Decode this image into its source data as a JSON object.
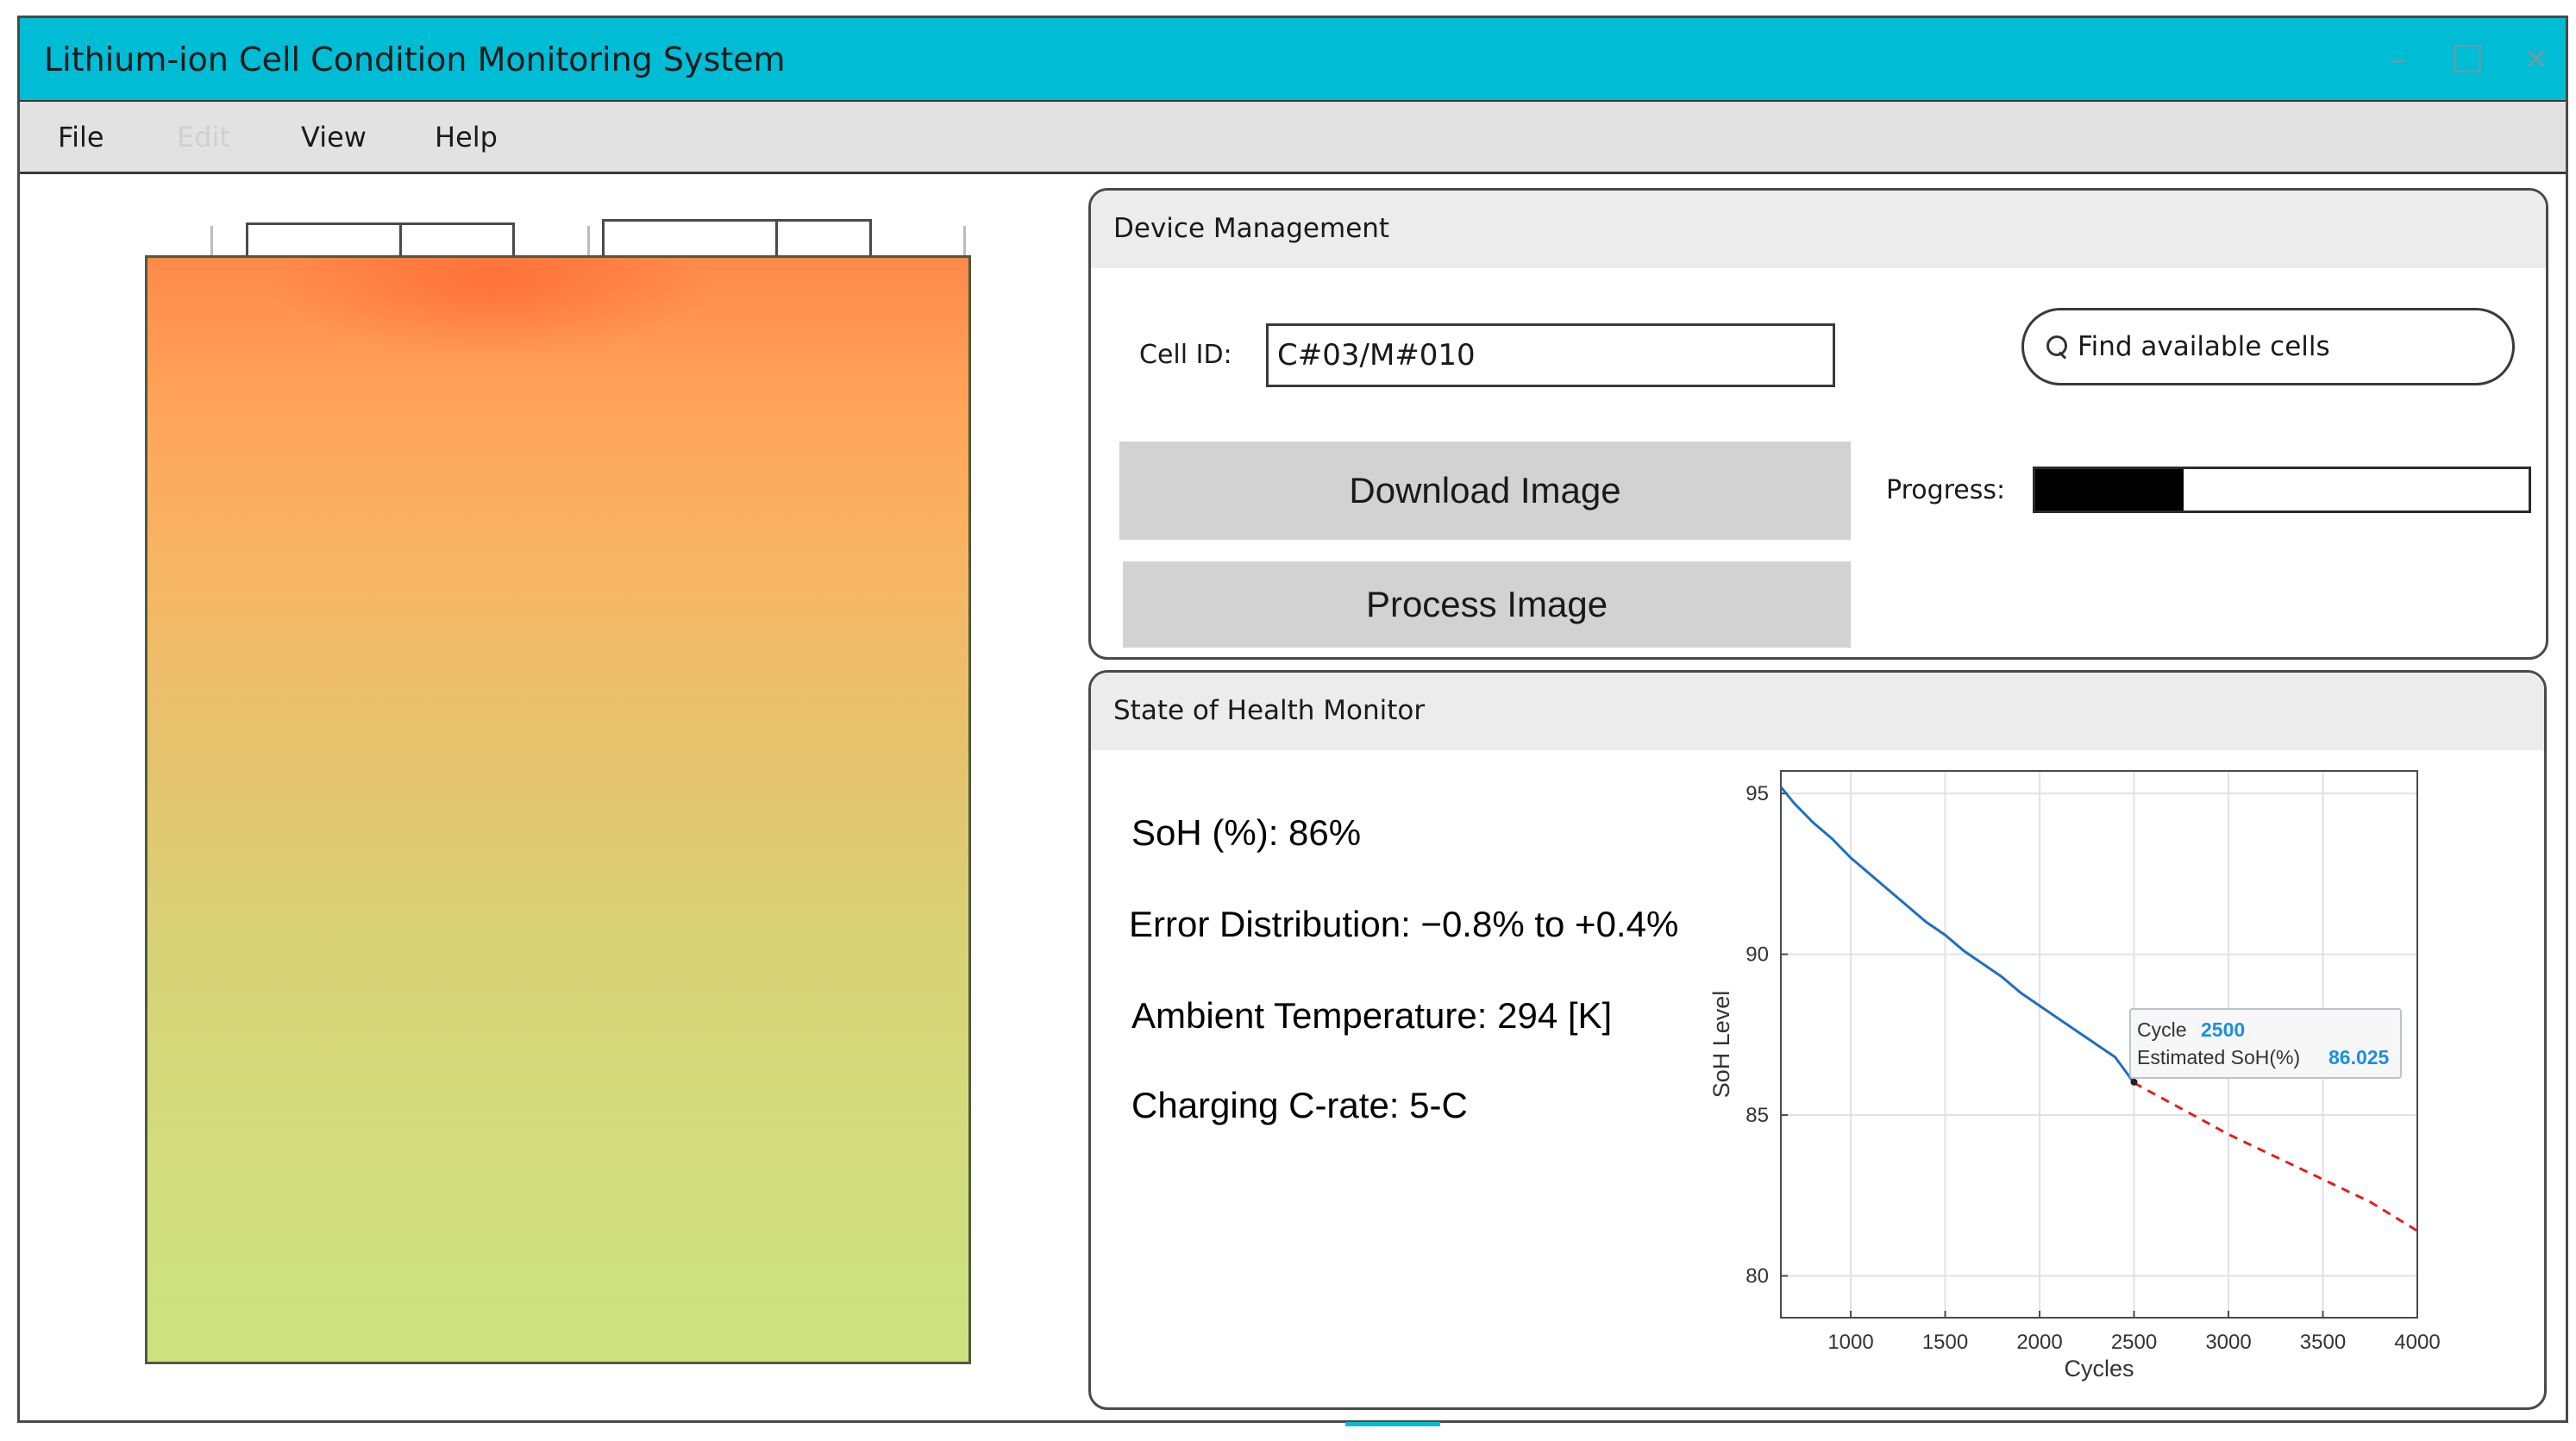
{
  "window": {
    "title": "Lithium-ion Cell Condition Monitoring System",
    "minimize_glyph": "–",
    "maximize_glyph": "☐",
    "close_glyph": "✕",
    "accent_color": "#00bcd4"
  },
  "menu": {
    "file": "File",
    "edit": "Edit",
    "view": "View",
    "help": "Help"
  },
  "device_management": {
    "title": "Device Management",
    "cell_id_label": "Cell ID:",
    "cell_id_value": "C#03/M#010",
    "find_button": "Find available cells",
    "download_button": "Download Image",
    "process_button": "Process Image",
    "progress_label": "Progress:",
    "progress_fraction": 0.3
  },
  "soh_monitor": {
    "title": "State of Health Monitor",
    "soh": "SoH (%): 86%",
    "error_distribution": "Error Distribution: −0.8% to +0.4%",
    "ambient_temperature": "Ambient Temperature: 294 [K]",
    "charging_rate": "Charging C-rate: 5-C"
  },
  "chart_data": {
    "type": "line",
    "xlabel": "Cycles",
    "ylabel": "SoH Level",
    "xlim": [
      630,
      4000
    ],
    "ylim": [
      78.7,
      95.7
    ],
    "xticks": [
      1000,
      1500,
      2000,
      2500,
      3000,
      3500,
      4000
    ],
    "yticks": [
      80,
      85,
      90,
      95
    ],
    "grid": true,
    "series": [
      {
        "style": "solid",
        "color": "#1f6fbf",
        "x": [
          630,
          700,
          800,
          900,
          1000,
          1100,
          1200,
          1300,
          1400,
          1500,
          1600,
          1700,
          1800,
          1900,
          2000,
          2100,
          2200,
          2300,
          2400,
          2500
        ],
        "y": [
          95.2,
          94.7,
          94.1,
          93.6,
          93.0,
          92.5,
          92.0,
          91.5,
          91.0,
          90.6,
          90.1,
          89.7,
          89.3,
          88.8,
          88.4,
          88.0,
          87.6,
          87.2,
          86.8,
          86.0
        ]
      },
      {
        "style": "dashed",
        "color": "#e02020",
        "x": [
          2500,
          2750,
          3000,
          3250,
          3500,
          3750,
          4000
        ],
        "y": [
          86.0,
          85.2,
          84.4,
          83.7,
          83.0,
          82.3,
          81.4
        ]
      }
    ],
    "tooltip": {
      "x_label": "Cycle",
      "x_value": "2500",
      "y_label": "Estimated SoH(%)",
      "y_value": "86.025"
    }
  }
}
